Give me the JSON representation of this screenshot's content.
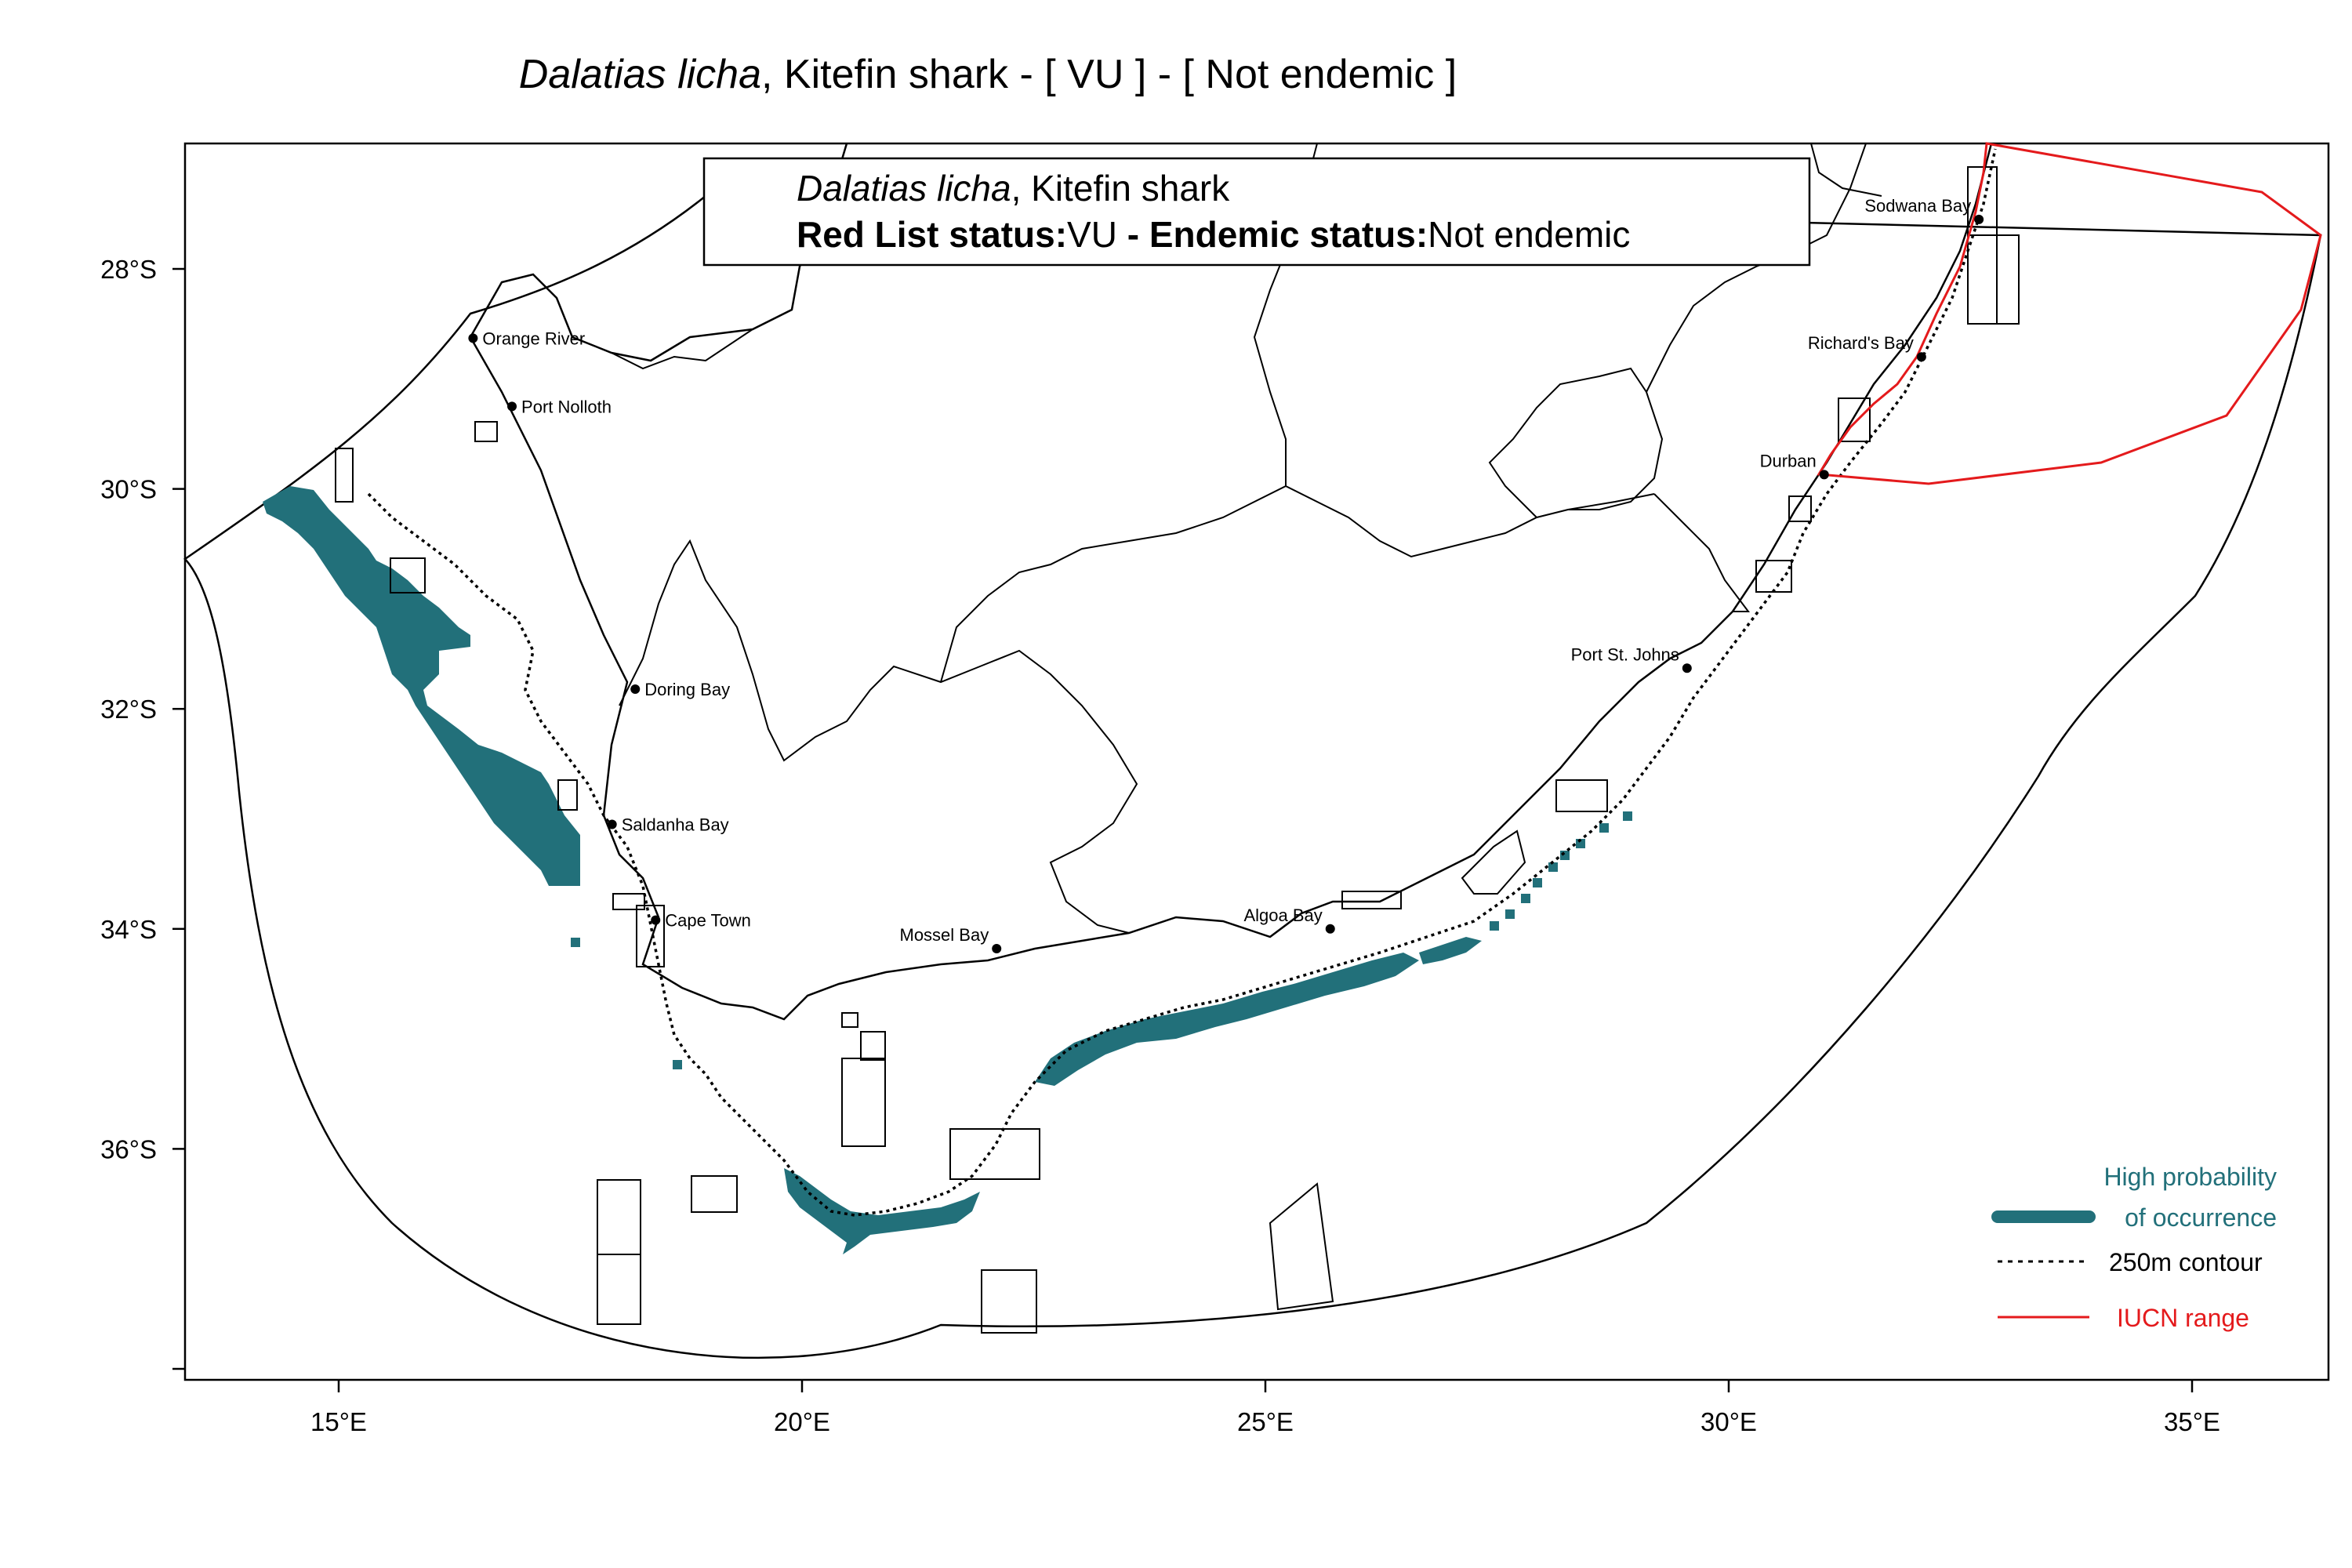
{
  "title": {
    "species": "Dalatias licha",
    "rest": ", Kitefin shark  - [ VU ] - [ Not endemic ]"
  },
  "info_box": {
    "species": "Dalatias licha",
    "common_name": ", Kitefin shark",
    "red_list_label": "Red List status:",
    "red_list_value": "VU",
    "endemic_label": " - Endemic status:",
    "endemic_value": "Not endemic"
  },
  "x_ticks": [
    "15°E",
    "20°E",
    "25°E",
    "30°E",
    "35°E"
  ],
  "y_ticks": [
    "28°S",
    "30°S",
    "32°S",
    "34°S",
    "36°S"
  ],
  "places": [
    {
      "name": "Orange River",
      "lon": 16.45,
      "lat": -28.63
    },
    {
      "name": "Port Nolloth",
      "lon": 16.87,
      "lat": -29.25
    },
    {
      "name": "Doring Bay",
      "lon": 18.2,
      "lat": -31.82
    },
    {
      "name": "Saldanha Bay",
      "lon": 17.95,
      "lat": -33.05
    },
    {
      "name": "Cape Town",
      "lon": 18.42,
      "lat": -33.92
    },
    {
      "name": "Mossel Bay",
      "lon": 22.1,
      "lat": -34.18
    },
    {
      "name": "Algoa Bay",
      "lon": 25.7,
      "lat": -34.0
    },
    {
      "name": "Port St. Johns",
      "lon": 29.55,
      "lat": -31.63
    },
    {
      "name": "Durban",
      "lon": 31.03,
      "lat": -29.87
    },
    {
      "name": "Richard's Bay",
      "lon": 32.08,
      "lat": -28.8
    },
    {
      "name": "Sodwana Bay",
      "lon": 32.7,
      "lat": -27.55
    }
  ],
  "legend": {
    "occurrence_line1": "High probability",
    "occurrence_line2": "of occurrence",
    "contour": "250m contour",
    "iucn": "IUCN range"
  },
  "colors": {
    "occurrence": "#22707A",
    "iucn": "#E41A1C",
    "lines": "#000000"
  }
}
